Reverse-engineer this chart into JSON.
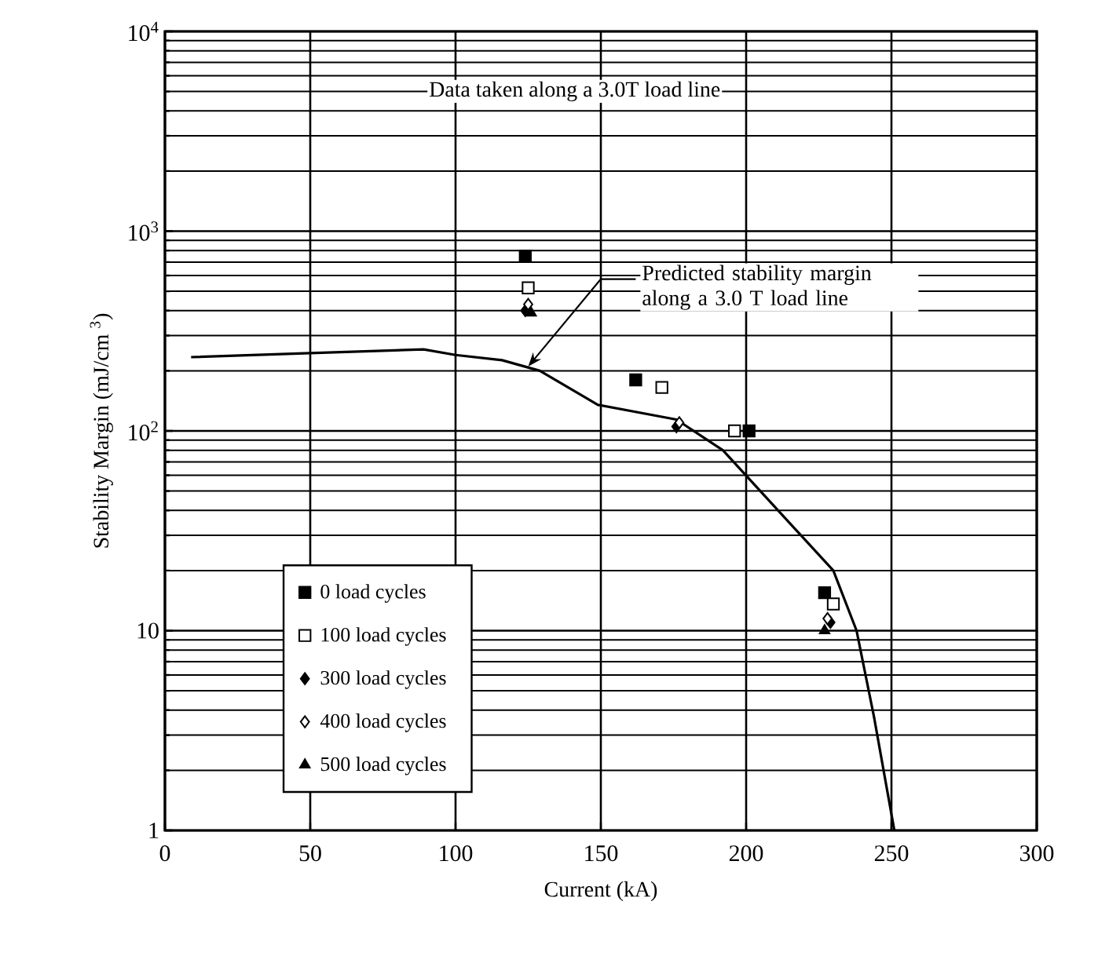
{
  "chart_data": {
    "type": "scatter",
    "xlabel": "Current (kA)",
    "ylabel": "Stability Margin (mJ/cm $^{3}$)",
    "xlim": [
      0,
      300
    ],
    "ylim": [
      1,
      10000
    ],
    "log": "y",
    "xticks": [
      0,
      50,
      100,
      150,
      200,
      250,
      300
    ],
    "yticks": [
      1,
      10,
      {
        "value": 100,
        "label": "10$^{2}$"
      },
      {
        "value": 1000,
        "label": "10$^{3}$"
      },
      {
        "value": 10000,
        "label": "10$^{4}$"
      }
    ],
    "grid": true,
    "legend": "bottom left",
    "annotations": [
      "Data taken along a 3.0T load line",
      {
        "text": "Predicted stability margin along a 3.0 T load line",
        "x": 125,
        "y": 210
      }
    ],
    "series": [
      {
        "type": "line",
        "color": "#000000",
        "marker": "none",
        "line_style": "solid",
        "x": [
          9,
          50,
          89,
          100,
          116,
          129,
          149,
          176,
          192,
          230,
          238,
          244,
          251
        ],
        "values": [
          234,
          245,
          256,
          240,
          226,
          200,
          135,
          114,
          80,
          20,
          10,
          3.7,
          1
        ]
      },
      {
        "name": "0 load cycles",
        "color": "#000000",
        "marker": "square",
        "x": [
          124,
          162,
          201,
          227
        ],
        "values": [
          750,
          180,
          100,
          15.5
        ]
      },
      {
        "name": "100 load cycles",
        "color": "#ffffff",
        "marker": "square",
        "x": [
          125,
          171,
          196,
          230
        ],
        "values": [
          520,
          165,
          100,
          13.6
        ]
      },
      {
        "name": "300 load cycles",
        "color": "#000000",
        "marker": "diamond",
        "x": [
          124,
          176,
          229
        ],
        "values": [
          400,
          105,
          11
        ]
      },
      {
        "name": "400 load cycles",
        "color": "#ffffff",
        "marker": "diamond",
        "x": [
          125,
          177,
          228
        ],
        "values": [
          430,
          110,
          11.5
        ]
      },
      {
        "name": "500 load cycles",
        "color": "#000000",
        "marker": "triangle",
        "x": [
          126,
          227
        ],
        "values": [
          390,
          10
        ]
      }
    ]
  }
}
